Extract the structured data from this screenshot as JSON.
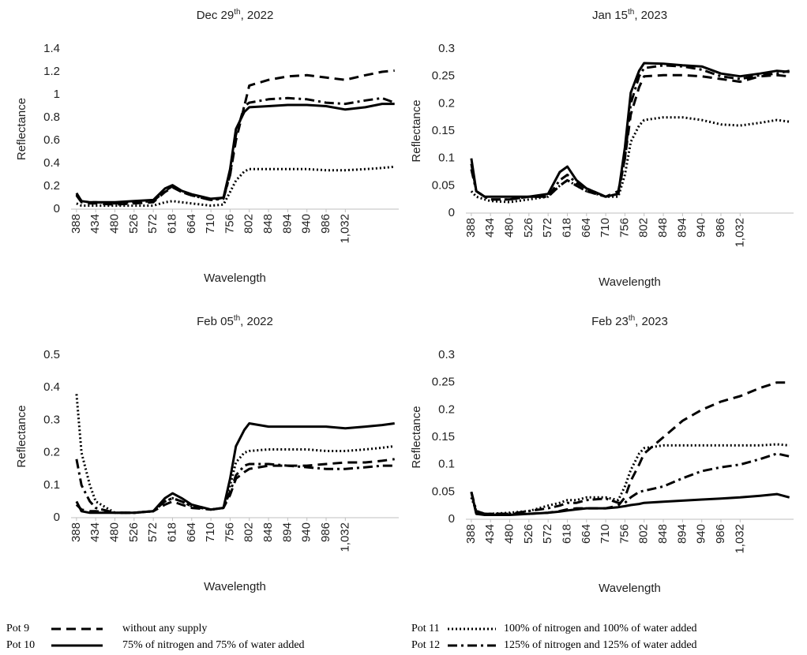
{
  "chart_data": [
    {
      "type": "line",
      "title": [
        "Dec 29",
        "th",
        ", 2022"
      ],
      "xlabel": "Wavelength",
      "ylabel": "Reflectance",
      "x": [
        388,
        400,
        420,
        434,
        480,
        526,
        572,
        600,
        618,
        640,
        664,
        710,
        740,
        756,
        770,
        790,
        802,
        848,
        894,
        940,
        986,
        1032,
        1080,
        1120,
        1150
      ],
      "xlim": [
        375,
        1160
      ],
      "xticks": [
        388,
        434,
        480,
        526,
        572,
        618,
        664,
        710,
        756,
        802,
        848,
        894,
        940,
        986,
        {
          "value": 1032,
          "label": "1,032"
        }
      ],
      "ylim": [
        0,
        1.4
      ],
      "yticks": [
        0,
        0.2,
        0.4,
        0.6,
        0.8,
        1,
        1.2,
        1.4
      ],
      "series": [
        {
          "values": [
            0.12,
            0.06,
            0.05,
            0.05,
            0.04,
            0.05,
            0.06,
            0.15,
            0.19,
            0.15,
            0.12,
            0.08,
            0.1,
            0.3,
            0.6,
            0.9,
            1.08,
            1.13,
            1.16,
            1.17,
            1.15,
            1.13,
            1.17,
            1.2,
            1.21
          ]
        },
        {
          "values": [
            0.14,
            0.07,
            0.06,
            0.06,
            0.06,
            0.07,
            0.08,
            0.18,
            0.21,
            0.16,
            0.13,
            0.09,
            0.1,
            0.35,
            0.7,
            0.85,
            0.89,
            0.9,
            0.91,
            0.91,
            0.9,
            0.87,
            0.89,
            0.92,
            0.92
          ]
        },
        {
          "values": [
            0.05,
            0.03,
            0.03,
            0.03,
            0.03,
            0.03,
            0.03,
            0.06,
            0.07,
            0.06,
            0.05,
            0.03,
            0.04,
            0.15,
            0.25,
            0.33,
            0.35,
            0.35,
            0.35,
            0.35,
            0.34,
            0.34,
            0.35,
            0.36,
            0.37
          ]
        },
        {
          "values": [
            0.13,
            0.07,
            0.06,
            0.06,
            0.05,
            0.06,
            0.07,
            0.16,
            0.2,
            0.15,
            0.12,
            0.08,
            0.09,
            0.3,
            0.65,
            0.9,
            0.93,
            0.96,
            0.97,
            0.96,
            0.93,
            0.92,
            0.95,
            0.97,
            0.93
          ]
        }
      ]
    },
    {
      "type": "line",
      "title": [
        "Jan 15",
        "th",
        ", 2023"
      ],
      "xlabel": "Wavelength",
      "ylabel": "Reflectance",
      "x": [
        388,
        400,
        420,
        434,
        480,
        526,
        572,
        600,
        618,
        640,
        664,
        710,
        740,
        756,
        770,
        790,
        802,
        848,
        894,
        940,
        986,
        1032,
        1080,
        1120,
        1150
      ],
      "xlim": [
        375,
        1160
      ],
      "xticks": [
        388,
        434,
        480,
        526,
        572,
        618,
        664,
        710,
        756,
        802,
        848,
        894,
        940,
        986,
        {
          "value": 1032,
          "label": "1,032"
        }
      ],
      "ylim": [
        0,
        0.3
      ],
      "yticks": [
        0,
        0.05,
        0.1,
        0.15,
        0.2,
        0.25,
        0.3
      ],
      "series": [
        {
          "values": [
            0.09,
            0.04,
            0.03,
            0.025,
            0.025,
            0.03,
            0.03,
            0.05,
            0.06,
            0.05,
            0.04,
            0.03,
            0.04,
            0.1,
            0.18,
            0.23,
            0.25,
            0.252,
            0.252,
            0.25,
            0.245,
            0.24,
            0.25,
            0.252,
            0.25
          ]
        },
        {
          "values": [
            0.1,
            0.04,
            0.03,
            0.03,
            0.03,
            0.03,
            0.035,
            0.075,
            0.085,
            0.06,
            0.045,
            0.03,
            0.035,
            0.12,
            0.22,
            0.26,
            0.274,
            0.273,
            0.27,
            0.268,
            0.255,
            0.25,
            0.255,
            0.26,
            0.258
          ]
        },
        {
          "values": [
            0.04,
            0.03,
            0.025,
            0.022,
            0.02,
            0.025,
            0.03,
            0.05,
            0.06,
            0.05,
            0.04,
            0.03,
            0.03,
            0.07,
            0.13,
            0.16,
            0.17,
            0.175,
            0.175,
            0.17,
            0.162,
            0.16,
            0.165,
            0.17,
            0.167
          ]
        },
        {
          "values": [
            0.08,
            0.04,
            0.03,
            0.025,
            0.025,
            0.03,
            0.03,
            0.06,
            0.07,
            0.055,
            0.045,
            0.03,
            0.035,
            0.1,
            0.2,
            0.25,
            0.265,
            0.27,
            0.268,
            0.262,
            0.25,
            0.245,
            0.252,
            0.255,
            0.26
          ]
        }
      ]
    },
    {
      "type": "line",
      "title": [
        "Feb 05",
        "th",
        ", 2022"
      ],
      "xlabel": "Wavelength",
      "ylabel": "Reflectance",
      "x": [
        388,
        400,
        420,
        434,
        480,
        526,
        572,
        600,
        618,
        640,
        664,
        710,
        740,
        756,
        770,
        790,
        802,
        848,
        894,
        940,
        986,
        1032,
        1080,
        1120,
        1150
      ],
      "xlim": [
        375,
        1160
      ],
      "xticks": [
        388,
        434,
        480,
        526,
        572,
        618,
        664,
        710,
        756,
        802,
        848,
        894,
        940,
        986,
        {
          "value": 1032,
          "label": "1,032"
        }
      ],
      "ylim": [
        0,
        0.5
      ],
      "yticks": [
        0,
        0.1,
        0.2,
        0.3,
        0.4,
        0.5
      ],
      "series": [
        {
          "values": [
            0.04,
            0.025,
            0.02,
            0.02,
            0.015,
            0.015,
            0.02,
            0.04,
            0.05,
            0.04,
            0.03,
            0.025,
            0.03,
            0.07,
            0.12,
            0.14,
            0.15,
            0.16,
            0.16,
            0.16,
            0.165,
            0.17,
            0.17,
            0.175,
            0.18
          ]
        },
        {
          "values": [
            0.05,
            0.02,
            0.015,
            0.015,
            0.015,
            0.015,
            0.02,
            0.06,
            0.075,
            0.06,
            0.04,
            0.025,
            0.03,
            0.12,
            0.22,
            0.27,
            0.29,
            0.28,
            0.28,
            0.28,
            0.28,
            0.275,
            0.28,
            0.285,
            0.29
          ]
        },
        {
          "values": [
            0.38,
            0.2,
            0.1,
            0.05,
            0.015,
            0.015,
            0.02,
            0.05,
            0.06,
            0.05,
            0.035,
            0.025,
            0.03,
            0.1,
            0.17,
            0.2,
            0.205,
            0.21,
            0.21,
            0.21,
            0.205,
            0.205,
            0.21,
            0.215,
            0.22
          ]
        },
        {
          "values": [
            0.18,
            0.1,
            0.05,
            0.03,
            0.015,
            0.015,
            0.02,
            0.05,
            0.06,
            0.05,
            0.035,
            0.025,
            0.03,
            0.08,
            0.13,
            0.16,
            0.165,
            0.165,
            0.16,
            0.155,
            0.15,
            0.15,
            0.155,
            0.16,
            0.16
          ]
        }
      ]
    },
    {
      "type": "line",
      "title": [
        "Feb 23",
        "th",
        ", 2023"
      ],
      "xlabel": "Wavelength",
      "ylabel": "Reflectance",
      "x": [
        388,
        400,
        420,
        434,
        480,
        526,
        572,
        600,
        618,
        640,
        664,
        710,
        740,
        756,
        770,
        790,
        802,
        848,
        894,
        940,
        986,
        1032,
        1080,
        1120,
        1150
      ],
      "xlim": [
        375,
        1160
      ],
      "xticks": [
        388,
        434,
        480,
        526,
        572,
        618,
        664,
        710,
        756,
        802,
        848,
        894,
        940,
        986,
        {
          "value": 1032,
          "label": "1,032"
        }
      ],
      "ylim": [
        0,
        0.3
      ],
      "yticks": [
        0,
        0.05,
        0.1,
        0.15,
        0.2,
        0.25,
        0.3
      ],
      "series": [
        {
          "values": [
            0.05,
            0.01,
            0.01,
            0.01,
            0.01,
            0.01,
            0.012,
            0.015,
            0.018,
            0.02,
            0.02,
            0.02,
            0.025,
            0.04,
            0.07,
            0.1,
            0.12,
            0.15,
            0.18,
            0.2,
            0.215,
            0.225,
            0.24,
            0.25,
            0.25
          ]
        },
        {
          "values": [
            0.05,
            0.01,
            0.008,
            0.008,
            0.008,
            0.01,
            0.012,
            0.014,
            0.016,
            0.018,
            0.02,
            0.02,
            0.022,
            0.024,
            0.026,
            0.028,
            0.03,
            0.032,
            0.034,
            0.036,
            0.038,
            0.04,
            0.043,
            0.046,
            0.04
          ]
        },
        {
          "values": [
            0.04,
            0.015,
            0.01,
            0.01,
            0.012,
            0.015,
            0.025,
            0.03,
            0.035,
            0.035,
            0.04,
            0.04,
            0.035,
            0.06,
            0.09,
            0.12,
            0.13,
            0.135,
            0.135,
            0.135,
            0.135,
            0.135,
            0.135,
            0.137,
            0.135
          ]
        },
        {
          "values": [
            0.05,
            0.015,
            0.01,
            0.01,
            0.01,
            0.015,
            0.02,
            0.025,
            0.03,
            0.03,
            0.035,
            0.038,
            0.03,
            0.03,
            0.04,
            0.05,
            0.052,
            0.06,
            0.075,
            0.088,
            0.095,
            0.1,
            0.11,
            0.12,
            0.115
          ]
        }
      ]
    }
  ],
  "legend": [
    {
      "name": "Pot 9",
      "description": "without any supply",
      "color": "#000000",
      "dash": "12 7"
    },
    {
      "name": "Pot 10",
      "description": "75% of nitrogen and 75% of water added",
      "color": "#000000",
      "dash": "none"
    },
    {
      "name": "Pot 11",
      "description": "100% of nitrogen and 100% of water added",
      "color": "#000000",
      "dash": "2 3"
    },
    {
      "name": "Pot 12",
      "description": "125% of nitrogen and 125% of water added",
      "color": "#000000",
      "dash": "12 5 3 5"
    }
  ]
}
